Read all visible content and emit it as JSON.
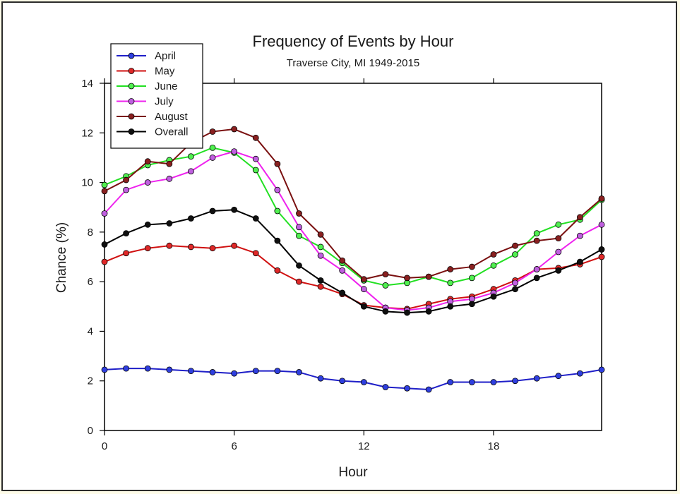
{
  "chart_data": {
    "type": "line",
    "title": "Frequency of Events by Hour",
    "subtitle": "Traverse City, MI 1949-2015",
    "xlabel": "Hour",
    "ylabel": "Chance (%)",
    "xlim": [
      0,
      23
    ],
    "ylim": [
      0,
      14
    ],
    "xticks": [
      0,
      6,
      12,
      18
    ],
    "yticks": [
      0,
      2,
      4,
      6,
      8,
      10,
      12,
      14
    ],
    "grid": false,
    "legend_position": "top-left",
    "x": [
      0,
      1,
      2,
      3,
      4,
      5,
      6,
      7,
      8,
      9,
      10,
      11,
      12,
      13,
      14,
      15,
      16,
      17,
      18,
      19,
      20,
      21,
      22,
      23
    ],
    "series": [
      {
        "name": "April",
        "color": "#1f1fc8",
        "marker_fill": "#2f3fe0",
        "values": [
          2.45,
          2.5,
          2.5,
          2.45,
          2.4,
          2.35,
          2.3,
          2.4,
          2.4,
          2.35,
          2.1,
          2.0,
          1.95,
          1.75,
          1.7,
          1.65,
          1.95,
          1.95,
          1.95,
          2.0,
          2.1,
          2.2,
          2.3,
          2.45
        ]
      },
      {
        "name": "May",
        "color": "#d01010",
        "marker_fill": "#e02828",
        "values": [
          6.8,
          7.15,
          7.35,
          7.45,
          7.4,
          7.35,
          7.45,
          7.15,
          6.45,
          6.0,
          5.8,
          5.5,
          5.05,
          4.95,
          4.9,
          5.1,
          5.3,
          5.4,
          5.7,
          6.05,
          6.5,
          6.55,
          6.7,
          7.0
        ]
      },
      {
        "name": "June",
        "color": "#22e022",
        "marker_fill": "#50f050",
        "values": [
          9.9,
          10.25,
          10.7,
          10.9,
          11.05,
          11.4,
          11.2,
          10.5,
          8.85,
          7.85,
          7.4,
          6.75,
          6.05,
          5.85,
          5.95,
          6.2,
          5.95,
          6.15,
          6.65,
          7.1,
          7.95,
          8.3,
          8.5,
          9.3
        ]
      },
      {
        "name": "July",
        "color": "#ee22ee",
        "marker_fill": "#c060e0",
        "values": [
          8.75,
          9.7,
          10.0,
          10.15,
          10.45,
          11.0,
          11.25,
          10.95,
          9.7,
          8.2,
          7.05,
          6.45,
          5.7,
          4.95,
          4.85,
          4.95,
          5.2,
          5.3,
          5.55,
          5.95,
          6.5,
          7.2,
          7.85,
          8.3
        ]
      },
      {
        "name": "August",
        "color": "#7a1010",
        "marker_fill": "#8a2020",
        "values": [
          9.65,
          10.1,
          10.85,
          10.75,
          11.6,
          12.05,
          12.15,
          11.8,
          10.75,
          8.75,
          7.9,
          6.85,
          6.1,
          6.3,
          6.15,
          6.2,
          6.5,
          6.6,
          7.1,
          7.45,
          7.65,
          7.75,
          8.6,
          9.35
        ]
      },
      {
        "name": "Overall",
        "color": "#000000",
        "marker_fill": "#101010",
        "values": [
          7.5,
          7.95,
          8.3,
          8.35,
          8.55,
          8.85,
          8.9,
          8.55,
          7.65,
          6.65,
          6.05,
          5.55,
          5.0,
          4.8,
          4.75,
          4.8,
          5.0,
          5.1,
          5.4,
          5.7,
          6.15,
          6.45,
          6.8,
          7.3
        ]
      }
    ]
  }
}
